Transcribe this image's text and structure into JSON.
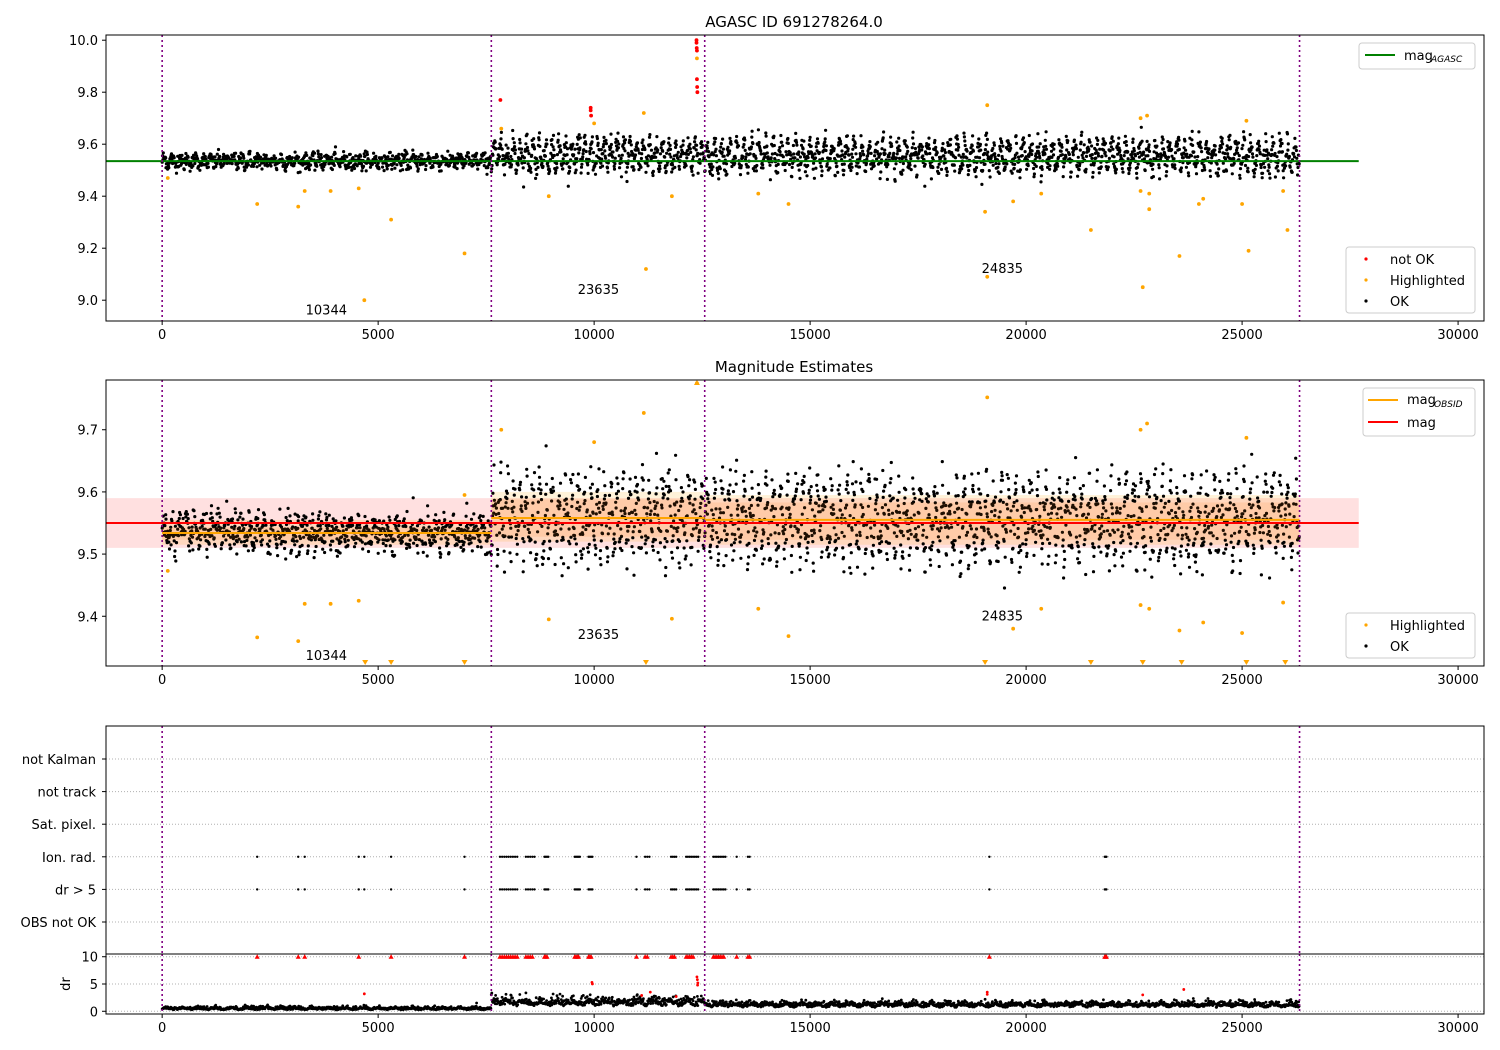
{
  "chart_data": [
    {
      "id": "agasc-mag",
      "type": "scatter",
      "title": "AGASC ID 691278264.0",
      "xlim": [
        -1300,
        30600
      ],
      "ylim": [
        8.92,
        10.02
      ],
      "x_ticks": [
        0,
        5000,
        10000,
        15000,
        20000,
        25000,
        30000
      ],
      "y_ticks": [
        9.0,
        9.2,
        9.4,
        9.6,
        9.8,
        10.0
      ],
      "y_tick_labels": [
        "9.0",
        "9.2",
        "9.4",
        "9.6",
        "9.8",
        "10.0"
      ],
      "obsid_boundaries": [
        0,
        7620,
        12560,
        26330
      ],
      "obsid_labels": [
        {
          "text": "10344",
          "x": 3800,
          "y": 8.96
        },
        {
          "text": "23635",
          "x": 10100,
          "y": 9.04
        },
        {
          "text": "24835",
          "x": 19450,
          "y": 9.12
        }
      ],
      "lines": [
        {
          "name": "mag_AGASC",
          "color": "#008000",
          "x": [
            -1300,
            27700
          ],
          "y": [
            9.535,
            9.535
          ]
        }
      ],
      "segments": [
        {
          "x0": 0,
          "x1": 7620,
          "mean": 9.535,
          "amp": 0.012,
          "spread": 0.014,
          "period": 180
        },
        {
          "x0": 7620,
          "x1": 12560,
          "mean": 9.558,
          "amp": 0.045,
          "spread": 0.022,
          "period": 150
        },
        {
          "x0": 12560,
          "x1": 26330,
          "mean": 9.555,
          "amp": 0.045,
          "spread": 0.022,
          "period": 170
        }
      ],
      "series": [
        {
          "name": "not OK",
          "color": "#ff0000",
          "points": [
            [
              7830,
              9.77
            ],
            [
              9920,
              9.74
            ],
            [
              9920,
              9.73
            ],
            [
              9930,
              9.71
            ],
            [
              12370,
              10.0
            ],
            [
              12370,
              9.99
            ],
            [
              12375,
              9.97
            ],
            [
              12380,
              9.96
            ],
            [
              12380,
              9.85
            ],
            [
              12385,
              9.82
            ],
            [
              12390,
              9.8
            ]
          ]
        },
        {
          "name": "Highlighted",
          "color": "#ffa500",
          "points": [
            [
              130,
              9.47
            ],
            [
              2200,
              9.37
            ],
            [
              3150,
              9.36
            ],
            [
              3300,
              9.42
            ],
            [
              3900,
              9.42
            ],
            [
              4550,
              9.43
            ],
            [
              4680,
              9.0
            ],
            [
              5300,
              9.31
            ],
            [
              7000,
              9.18
            ],
            [
              7850,
              9.66
            ],
            [
              8950,
              9.4
            ],
            [
              10000,
              9.68
            ],
            [
              11200,
              9.12
            ],
            [
              11150,
              9.72
            ],
            [
              11800,
              9.4
            ],
            [
              12380,
              9.93
            ],
            [
              13800,
              9.41
            ],
            [
              14500,
              9.37
            ],
            [
              19050,
              9.34
            ],
            [
              19100,
              9.75
            ],
            [
              19100,
              9.09
            ],
            [
              19700,
              9.38
            ],
            [
              20350,
              9.41
            ],
            [
              21500,
              9.27
            ],
            [
              22650,
              9.42
            ],
            [
              22650,
              9.7
            ],
            [
              22800,
              9.71
            ],
            [
              22850,
              9.35
            ],
            [
              22850,
              9.41
            ],
            [
              23550,
              9.17
            ],
            [
              24000,
              9.37
            ],
            [
              24100,
              9.39
            ],
            [
              25000,
              9.37
            ],
            [
              25100,
              9.69
            ],
            [
              25150,
              9.19
            ],
            [
              25950,
              9.42
            ],
            [
              26050,
              9.27
            ],
            [
              22700,
              9.05
            ]
          ]
        },
        {
          "name": "OK",
          "color": "#000000",
          "points": []
        }
      ],
      "legend_placement": "bottom-right"
    },
    {
      "id": "mag-estimates",
      "type": "scatter",
      "title": "Magnitude Estimates",
      "xlim": [
        -1300,
        30600
      ],
      "ylim": [
        9.32,
        9.78
      ],
      "x_ticks": [
        0,
        5000,
        10000,
        15000,
        20000,
        25000,
        30000
      ],
      "y_ticks": [
        9.4,
        9.5,
        9.6,
        9.7
      ],
      "y_tick_labels": [
        "9.4",
        "9.5",
        "9.6",
        "9.7"
      ],
      "obsid_boundaries": [
        0,
        7620,
        12560,
        26330
      ],
      "obsid_labels": [
        {
          "text": "10344",
          "x": 3800,
          "y": 9.336
        },
        {
          "text": "23635",
          "x": 10100,
          "y": 9.37
        },
        {
          "text": "24835",
          "x": 19450,
          "y": 9.4
        }
      ],
      "mag_band": {
        "ylo": 9.51,
        "yhi": 9.59,
        "x0": -1300,
        "x1": 27700,
        "color": "#ff0000"
      },
      "obsid_bands": [
        {
          "x0": 0,
          "x1": 7620,
          "ylo": 9.515,
          "yhi": 9.555
        },
        {
          "x0": 7620,
          "x1": 12560,
          "ylo": 9.52,
          "yhi": 9.6
        },
        {
          "x0": 12560,
          "x1": 26330,
          "ylo": 9.515,
          "yhi": 9.595
        }
      ],
      "lines": [
        {
          "name": "mag",
          "color": "#ff0000",
          "x": [
            -1300,
            27700
          ],
          "y": [
            9.55,
            9.55
          ]
        },
        {
          "name": "mag_OBSID",
          "color": "#ffa500",
          "segments": [
            [
              0,
              7620,
              9.534
            ],
            [
              7620,
              12560,
              9.558
            ],
            [
              12560,
              26330,
              9.555
            ]
          ]
        }
      ],
      "segments": [
        {
          "x0": 0,
          "x1": 7620,
          "mean": 9.535,
          "amp": 0.012,
          "spread": 0.014,
          "period": 180
        },
        {
          "x0": 7620,
          "x1": 12560,
          "mean": 9.558,
          "amp": 0.045,
          "spread": 0.022,
          "period": 150
        },
        {
          "x0": 12560,
          "x1": 26330,
          "mean": 9.555,
          "amp": 0.045,
          "spread": 0.022,
          "period": 170
        }
      ],
      "series": [
        {
          "name": "Highlighted",
          "color": "#ffa500",
          "points": [
            [
              130,
              9.473
            ],
            [
              2200,
              9.366
            ],
            [
              3150,
              9.36
            ],
            [
              3300,
              9.42
            ],
            [
              3900,
              9.42
            ],
            [
              4550,
              9.425
            ],
            [
              7000,
              9.595
            ],
            [
              7850,
              9.7
            ],
            [
              8950,
              9.395
            ],
            [
              10000,
              9.68
            ],
            [
              11150,
              9.727
            ],
            [
              11800,
              9.396
            ],
            [
              12380,
              9.775
            ],
            [
              13800,
              9.412
            ],
            [
              14500,
              9.368
            ],
            [
              19100,
              9.752
            ],
            [
              19700,
              9.38
            ],
            [
              20350,
              9.412
            ],
            [
              22650,
              9.418
            ],
            [
              22650,
              9.7
            ],
            [
              22800,
              9.71
            ],
            [
              22850,
              9.412
            ],
            [
              23550,
              9.377
            ],
            [
              24100,
              9.39
            ],
            [
              25000,
              9.373
            ],
            [
              25100,
              9.687
            ],
            [
              25950,
              9.422
            ]
          ]
        },
        {
          "name": "OK",
          "color": "#000000",
          "points": []
        }
      ],
      "clipped_low": [
        4700,
        5300,
        7000,
        11200,
        19050,
        21500,
        22700,
        23600,
        25100,
        26000
      ],
      "legend_placement": "bottom-right"
    },
    {
      "id": "flags",
      "type": "scatter",
      "xlim": [
        -1300,
        30600
      ],
      "y_categories": [
        "not Kalman",
        "not track",
        "Sat. pixel.",
        "Ion. rad.",
        "dr > 5",
        "OBS not OK"
      ],
      "flagged_times": [
        2200,
        3150,
        3300,
        4550,
        4680,
        5300,
        7000,
        7820,
        7870,
        7920,
        7970,
        8020,
        8070,
        8120,
        8170,
        8220,
        8420,
        8470,
        8520,
        8570,
        8620,
        8850,
        8880,
        8910,
        8940,
        9550,
        9580,
        9610,
        9640,
        9670,
        9870,
        9900,
        9930,
        9960,
        10980,
        11180,
        11230,
        11280,
        11780,
        11820,
        11860,
        11900,
        12130,
        12170,
        12210,
        12250,
        12290,
        12330,
        12370,
        12410,
        12760,
        12800,
        12840,
        12880,
        12920,
        12960,
        13000,
        13040,
        13300,
        13560,
        13600,
        19150,
        21820,
        21840,
        21860
      ],
      "flag_rows": [
        "Ion. rad.",
        "dr > 5"
      ],
      "obsid_boundaries": [
        0,
        7620,
        12560,
        26330
      ]
    },
    {
      "id": "dr",
      "type": "scatter",
      "ylabel": "dr",
      "xlim": [
        -1300,
        30600
      ],
      "ylim": [
        -0.5,
        10.5
      ],
      "x_ticks": [
        0,
        5000,
        10000,
        15000,
        20000,
        25000,
        30000
      ],
      "y_ticks": [
        0,
        5,
        10
      ],
      "y_tick_labels": [
        "0",
        "5",
        "10"
      ],
      "obsid_boundaries": [
        0,
        7620,
        12560,
        26330
      ],
      "segments": [
        {
          "x0": 0,
          "x1": 7620,
          "base": 0.35,
          "noise": 0.25
        },
        {
          "x0": 7620,
          "x1": 12560,
          "base": 1.2,
          "noise": 0.7
        },
        {
          "x0": 12560,
          "x1": 26330,
          "base": 0.9,
          "noise": 0.45
        }
      ],
      "red_points": [
        [
          4680,
          3.2
        ],
        [
          9950,
          5.3
        ],
        [
          9960,
          5.0
        ],
        [
          11300,
          3.5
        ],
        [
          12380,
          6.3
        ],
        [
          12390,
          5.8
        ],
        [
          12400,
          5.2
        ],
        [
          12395,
          4.8
        ],
        [
          19100,
          3.5
        ],
        [
          19100,
          3.1
        ],
        [
          22700,
          3.0
        ],
        [
          23650,
          4.0
        ],
        [
          11100,
          2.9
        ],
        [
          11900,
          2.7
        ]
      ],
      "red_at_ceiling": [
        2200,
        3150,
        3300,
        4550,
        5300,
        7000,
        7820,
        7870,
        7920,
        7970,
        8020,
        8070,
        8120,
        8170,
        8220,
        8420,
        8470,
        8520,
        8570,
        8850,
        8880,
        8910,
        9550,
        9580,
        9610,
        9640,
        9870,
        9900,
        9930,
        10980,
        11180,
        11230,
        11780,
        11820,
        11860,
        12130,
        12170,
        12210,
        12250,
        12290,
        12760,
        12800,
        12840,
        12880,
        12920,
        12960,
        13000,
        13300,
        13560,
        13600,
        19150,
        21820,
        21840,
        21860
      ]
    }
  ],
  "legends": {
    "top_line": {
      "label": "mag",
      "sub": "AGASC",
      "color": "#008000"
    },
    "top_points": [
      {
        "label": "not OK",
        "color": "#ff0000"
      },
      {
        "label": "Highlighted",
        "color": "#ffa500"
      },
      {
        "label": "OK",
        "color": "#000000"
      }
    ],
    "mid_lines": [
      {
        "label": "mag",
        "sub": "OBSID",
        "color": "#ffa500"
      },
      {
        "label": "mag",
        "sub": "",
        "color": "#ff0000"
      }
    ],
    "mid_points": [
      {
        "label": "Highlighted",
        "color": "#ffa500"
      },
      {
        "label": "OK",
        "color": "#000000"
      }
    ]
  }
}
